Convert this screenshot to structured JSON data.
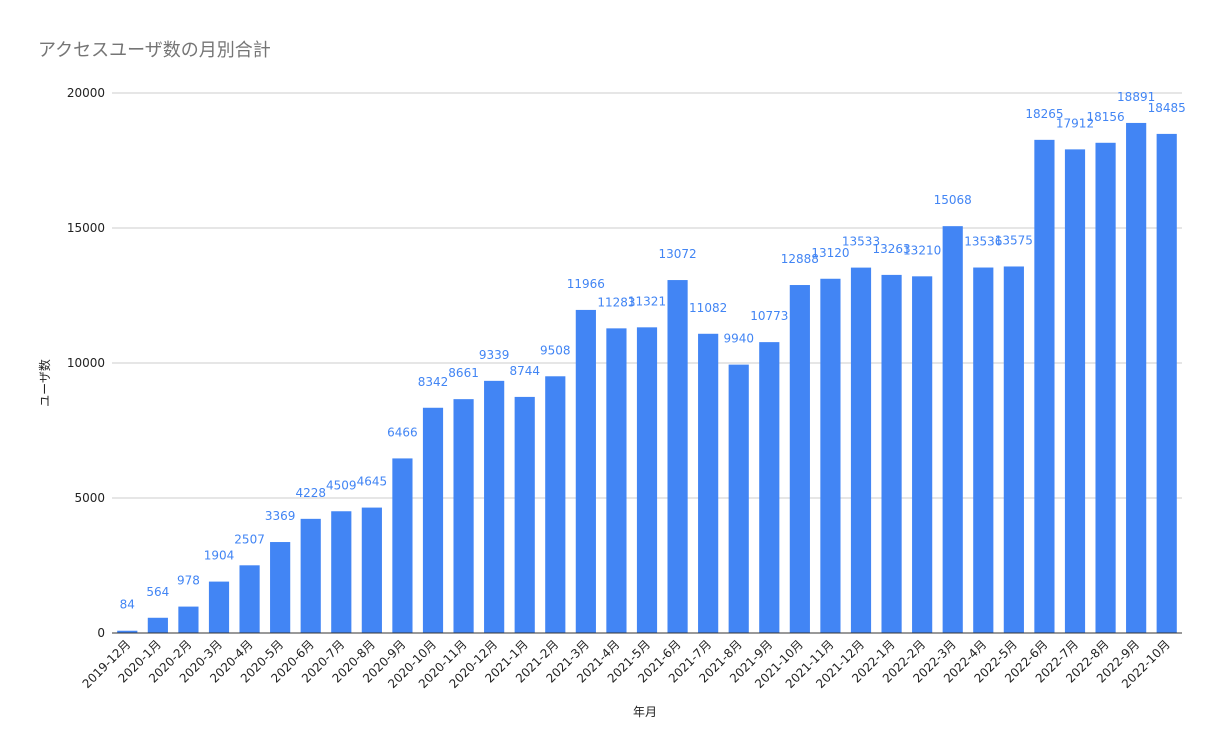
{
  "chart_data": {
    "type": "bar",
    "title": "アクセスユーザ数の月別合計",
    "x_label": "年月",
    "y_label": "ユーザ数",
    "categories": [
      "2019-12月",
      "2020-1月",
      "2020-2月",
      "2020-3月",
      "2020-4月",
      "2020-5月",
      "2020-6月",
      "2020-7月",
      "2020-8月",
      "2020-9月",
      "2020-10月",
      "2020-11月",
      "2020-12月",
      "2021-1月",
      "2021-2月",
      "2021-3月",
      "2021-4月",
      "2021-5月",
      "2021-6月",
      "2021-7月",
      "2021-8月",
      "2021-9月",
      "2021-10月",
      "2021-11月",
      "2021-12月",
      "2022-1月",
      "2022-2月",
      "2022-3月",
      "2022-4月",
      "2022-5月",
      "2022-6月",
      "2022-7月",
      "2022-8月",
      "2022-9月",
      "2022-10月"
    ],
    "values": [
      84,
      564,
      978,
      1904,
      2507,
      3369,
      4228,
      4509,
      4645,
      6466,
      8342,
      8661,
      9339,
      8744,
      9508,
      11966,
      11283,
      11321,
      13072,
      11082,
      9940,
      10773,
      12888,
      13120,
      13533,
      13263,
      13210,
      15068,
      13536,
      13575,
      18265,
      17912,
      18156,
      18891,
      18485
    ],
    "color": "#4285f4",
    "ylim": [
      0,
      20000
    ],
    "yticks": [
      0,
      5000,
      10000,
      15000,
      20000
    ],
    "grid": true
  }
}
